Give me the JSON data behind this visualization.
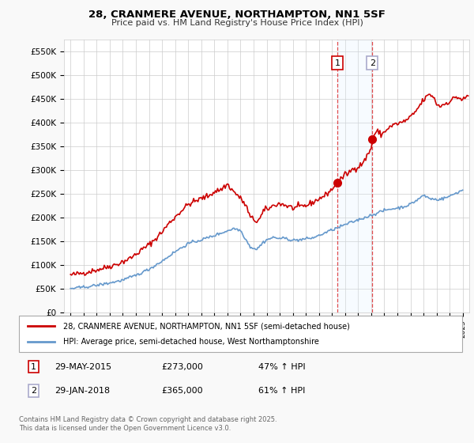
{
  "title": "28, CRANMERE AVENUE, NORTHAMPTON, NN1 5SF",
  "subtitle": "Price paid vs. HM Land Registry's House Price Index (HPI)",
  "ylabel_ticks": [
    "£0",
    "£50K",
    "£100K",
    "£150K",
    "£200K",
    "£250K",
    "£300K",
    "£350K",
    "£400K",
    "£450K",
    "£500K",
    "£550K"
  ],
  "ytick_values": [
    0,
    50000,
    100000,
    150000,
    200000,
    250000,
    300000,
    350000,
    400000,
    450000,
    500000,
    550000
  ],
  "ylim": [
    0,
    575000
  ],
  "xlim_start": 1994.5,
  "xlim_end": 2025.5,
  "sale1_x": 2015.41,
  "sale1_y": 273000,
  "sale2_x": 2018.08,
  "sale2_y": 365000,
  "vline1_x": 2015.41,
  "vline2_x": 2018.08,
  "shade_color": "#ddeeff",
  "vline_color": "#dd2222",
  "red_line_color": "#cc0000",
  "blue_line_color": "#6699cc",
  "legend1_text": "28, CRANMERE AVENUE, NORTHAMPTON, NN1 5SF (semi-detached house)",
  "legend2_text": "HPI: Average price, semi-detached house, West Northamptonshire",
  "footer_text": "Contains HM Land Registry data © Crown copyright and database right 2025.\nThis data is licensed under the Open Government Licence v3.0.",
  "background_color": "#f9f9f9",
  "plot_bg_color": "#ffffff",
  "grid_color": "#cccccc"
}
